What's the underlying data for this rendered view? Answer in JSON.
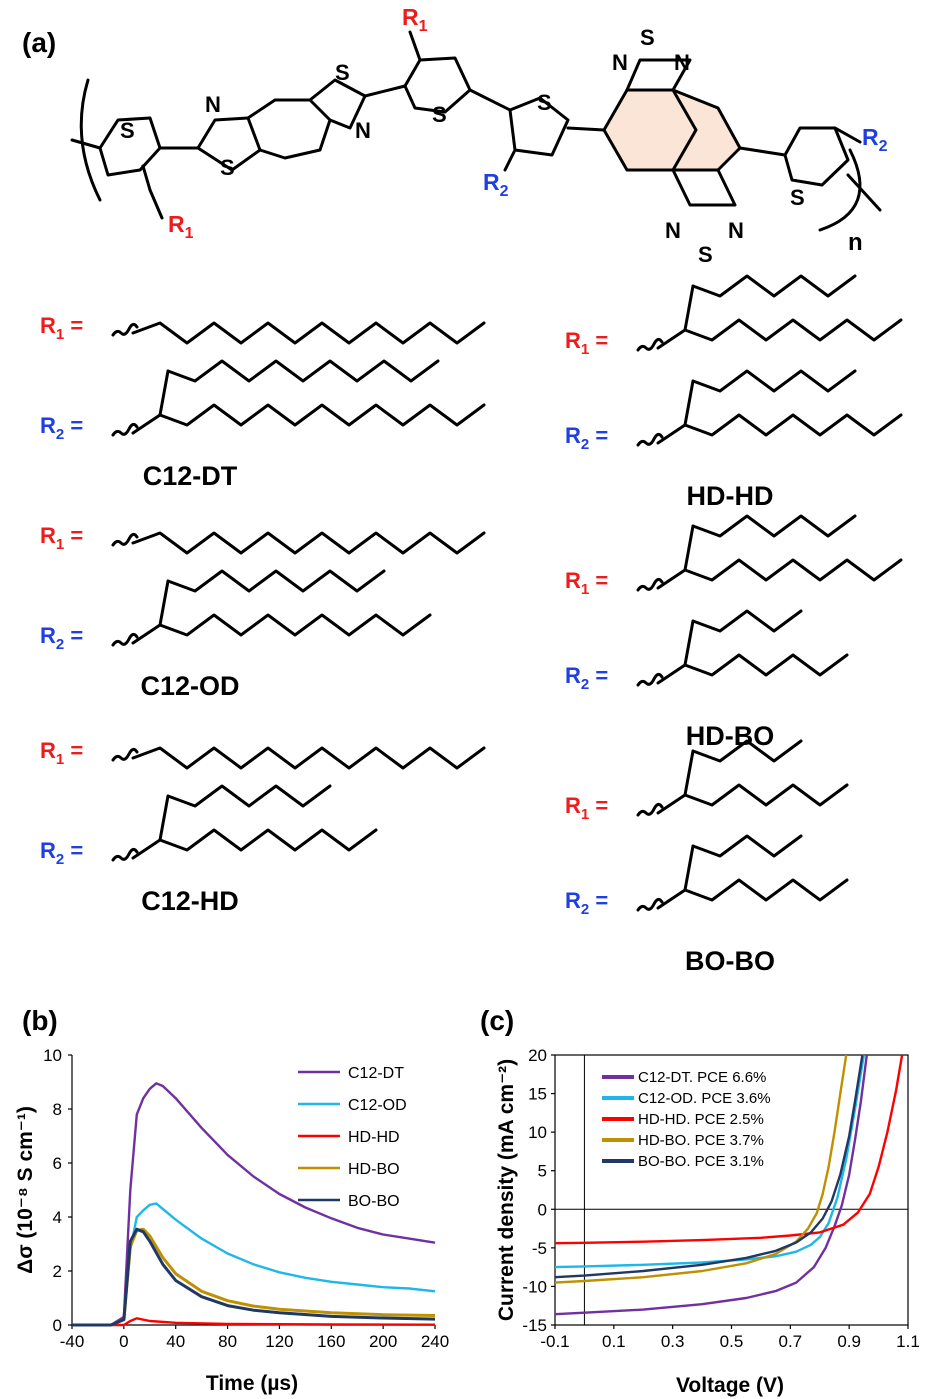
{
  "panels": {
    "a": {
      "label": "(a)"
    },
    "b": {
      "label": "(b)"
    },
    "c": {
      "label": "(c)"
    }
  },
  "structure": {
    "atoms": {
      "S": "S",
      "N": "N",
      "R": "R",
      "sub1": "1",
      "sub2": "2",
      "n": "n"
    },
    "polymers": [
      {
        "name": "C12-DT",
        "r1": "dodecyl",
        "r2": "2-decyltetradecyl"
      },
      {
        "name": "C12-OD",
        "r1": "dodecyl",
        "r2": "2-octyldodecyl"
      },
      {
        "name": "C12-HD",
        "r1": "dodecyl",
        "r2": "2-hexyldecyl"
      },
      {
        "name": "HD-HD",
        "r1": "2-hexyldecyl",
        "r2": "2-hexyldecyl"
      },
      {
        "name": "HD-BO",
        "r1": "2-hexyldecyl",
        "r2": "2-butyloctyl"
      },
      {
        "name": "BO-BO",
        "r1": "2-butyloctyl",
        "r2": "2-butyloctyl"
      }
    ],
    "r_eq": " ="
  },
  "colors": {
    "r1": "#ee1c1c",
    "r2": "#1f3fe0",
    "ring_fill": "#fbe5d6",
    "C12-DT": "#7030a0",
    "C12-OD": "#1fb7ea",
    "HD-HD": "#ff0000",
    "HD-BO": "#bf9000",
    "BO-BO": "#1f3864"
  },
  "chart_data": [
    {
      "panel": "b",
      "type": "line",
      "xlabel": "Time (µs)",
      "ylabel": "Δσ (10⁻⁸ S cm⁻¹)",
      "xlim": [
        -40,
        240
      ],
      "ylim": [
        0,
        10
      ],
      "xticks": [
        "-40",
        "0",
        "40",
        "80",
        "120",
        "160",
        "200",
        "240"
      ],
      "yticks": [
        "0",
        "2",
        "4",
        "6",
        "8",
        "10"
      ],
      "legend": "top-right",
      "series": [
        {
          "name": "C12-DT",
          "x": [
            -40,
            -10,
            0,
            5,
            10,
            15,
            20,
            25,
            30,
            40,
            60,
            80,
            100,
            120,
            140,
            160,
            180,
            200,
            220,
            240
          ],
          "y": [
            0,
            0,
            0.3,
            5.0,
            7.8,
            8.4,
            8.75,
            8.95,
            8.85,
            8.4,
            7.3,
            6.3,
            5.5,
            4.85,
            4.35,
            3.95,
            3.6,
            3.35,
            3.2,
            3.05
          ]
        },
        {
          "name": "C12-OD",
          "x": [
            -40,
            -10,
            0,
            5,
            10,
            15,
            20,
            25,
            30,
            40,
            60,
            80,
            100,
            120,
            140,
            160,
            180,
            200,
            220,
            240
          ],
          "y": [
            0,
            0,
            0.2,
            2.8,
            4.0,
            4.25,
            4.45,
            4.5,
            4.3,
            3.9,
            3.2,
            2.65,
            2.25,
            1.95,
            1.75,
            1.6,
            1.5,
            1.4,
            1.35,
            1.25
          ]
        },
        {
          "name": "HD-HD",
          "x": [
            -40,
            0,
            5,
            10,
            20,
            40,
            80,
            160,
            240
          ],
          "y": [
            0,
            0,
            0.15,
            0.25,
            0.15,
            0.08,
            0.04,
            0.02,
            0.01
          ]
        },
        {
          "name": "HD-BO",
          "x": [
            -40,
            -10,
            0,
            5,
            10,
            15,
            20,
            30,
            40,
            60,
            80,
            100,
            120,
            160,
            200,
            240
          ],
          "y": [
            0,
            0,
            0.2,
            2.9,
            3.5,
            3.55,
            3.3,
            2.5,
            1.9,
            1.25,
            0.9,
            0.7,
            0.58,
            0.45,
            0.38,
            0.35
          ]
        },
        {
          "name": "BO-BO",
          "x": [
            -40,
            -10,
            0,
            5,
            10,
            15,
            20,
            30,
            40,
            60,
            80,
            100,
            120,
            160,
            200,
            240
          ],
          "y": [
            0,
            0,
            0.2,
            3.1,
            3.55,
            3.45,
            3.1,
            2.25,
            1.65,
            1.05,
            0.72,
            0.55,
            0.45,
            0.32,
            0.26,
            0.22
          ]
        }
      ]
    },
    {
      "panel": "c",
      "type": "line",
      "xlabel": "Voltage (V)",
      "ylabel": "Current density (mA cm⁻²)",
      "xlim": [
        -0.1,
        1.1
      ],
      "ylim": [
        -15,
        20
      ],
      "xticks": [
        "-0.1",
        "0.1",
        "0.3",
        "0.5",
        "0.7",
        "0.9",
        "1.1"
      ],
      "yticks": [
        "-15",
        "-10",
        "-5",
        "0",
        "5",
        "10",
        "15",
        "20"
      ],
      "legend": "top-left",
      "series": [
        {
          "name": "C12-DT. PCE 6.6%",
          "key": "C12-DT",
          "x": [
            -0.1,
            0.0,
            0.2,
            0.4,
            0.55,
            0.65,
            0.72,
            0.78,
            0.82,
            0.85,
            0.875,
            0.9,
            0.92,
            0.94,
            0.96
          ],
          "y": [
            -13.6,
            -13.4,
            -13.0,
            -12.3,
            -11.5,
            -10.6,
            -9.5,
            -7.5,
            -5.0,
            -2.2,
            0.5,
            4.5,
            9.0,
            14.0,
            20.0
          ]
        },
        {
          "name": "C12-OD. PCE 3.6%",
          "key": "C12-OD",
          "x": [
            -0.1,
            0.0,
            0.2,
            0.4,
            0.55,
            0.65,
            0.72,
            0.77,
            0.8,
            0.83,
            0.86,
            0.89,
            0.92,
            0.95
          ],
          "y": [
            -7.5,
            -7.4,
            -7.2,
            -6.9,
            -6.5,
            -6.1,
            -5.5,
            -4.6,
            -3.6,
            -1.8,
            1.5,
            6.5,
            13.0,
            20.0
          ]
        },
        {
          "name": "HD-HD. PCE 2.5%",
          "key": "HD-HD",
          "x": [
            -0.1,
            0.0,
            0.2,
            0.4,
            0.6,
            0.7,
            0.8,
            0.88,
            0.93,
            0.97,
            1.0,
            1.03,
            1.06,
            1.08
          ],
          "y": [
            -4.4,
            -4.35,
            -4.2,
            -4.0,
            -3.7,
            -3.4,
            -3.0,
            -2.0,
            -0.4,
            2.0,
            5.5,
            10.0,
            15.5,
            20.0
          ]
        },
        {
          "name": "HD-BO. PCE 3.7%",
          "key": "HD-BO",
          "x": [
            -0.1,
            0.0,
            0.2,
            0.4,
            0.55,
            0.65,
            0.72,
            0.76,
            0.79,
            0.81,
            0.83,
            0.85,
            0.87,
            0.89
          ],
          "y": [
            -9.5,
            -9.3,
            -8.8,
            -8.0,
            -7.0,
            -5.8,
            -4.2,
            -2.5,
            -0.5,
            2.0,
            5.5,
            10.0,
            15.0,
            20.0
          ]
        },
        {
          "name": "BO-BO. PCE 3.1%",
          "key": "BO-BO",
          "x": [
            -0.1,
            0.0,
            0.2,
            0.4,
            0.55,
            0.65,
            0.72,
            0.77,
            0.81,
            0.84,
            0.87,
            0.9,
            0.92,
            0.945
          ],
          "y": [
            -8.8,
            -8.6,
            -8.0,
            -7.2,
            -6.3,
            -5.4,
            -4.3,
            -3.0,
            -1.2,
            1.0,
            4.5,
            9.5,
            14.0,
            20.0
          ]
        }
      ]
    }
  ]
}
